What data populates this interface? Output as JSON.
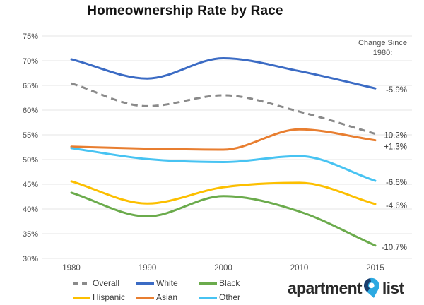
{
  "title": "Homeownership Rate by Race",
  "chart_data": {
    "type": "line",
    "title": "Homeownership Rate by Race",
    "x_categories": [
      "1980",
      "1990",
      "2000",
      "2010",
      "2015"
    ],
    "y_ticks": [
      "75%",
      "70%",
      "65%",
      "60%",
      "55%",
      "50%",
      "45%",
      "40%",
      "35%",
      "30%"
    ],
    "y_range": [
      30,
      75
    ],
    "grid": "horizontal-only",
    "legend_position": "bottom",
    "change_header": {
      "line1": "Change Since",
      "line2": "1980:"
    },
    "series": [
      {
        "name": "Overall",
        "color": "#8a8a8a",
        "dashed": true,
        "values": [
          65.4,
          60.8,
          63.0,
          59.7,
          55.2
        ],
        "change_label": "-10.2%"
      },
      {
        "name": "White",
        "color": "#3b6bc4",
        "dashed": false,
        "values": [
          70.3,
          66.4,
          70.5,
          67.9,
          64.4
        ],
        "change_label": "-5.9%"
      },
      {
        "name": "Black",
        "color": "#6bab4c",
        "dashed": false,
        "values": [
          43.3,
          38.5,
          42.6,
          39.5,
          32.6
        ],
        "change_label": "-10.7%"
      },
      {
        "name": "Hispanic",
        "color": "#fcbf00",
        "dashed": false,
        "values": [
          45.6,
          41.1,
          44.4,
          45.3,
          41.0
        ],
        "change_label": "-4.6%"
      },
      {
        "name": "Asian",
        "color": "#e87e30",
        "dashed": false,
        "values": [
          52.6,
          52.2,
          52.0,
          56.1,
          53.9
        ],
        "change_label": "+1.3%"
      },
      {
        "name": "Other",
        "color": "#47c3f2",
        "dashed": false,
        "values": [
          52.3,
          50.1,
          49.5,
          50.7,
          45.7
        ],
        "change_label": "-6.6%"
      }
    ],
    "legend_rows": [
      [
        "Overall",
        "White",
        "Black"
      ],
      [
        "Hispanic",
        "Asian",
        "Other"
      ]
    ]
  },
  "logo": {
    "word1": "apartment",
    "word2": "list",
    "pin_color_light": "#2ca9e1",
    "pin_color_dark": "#1a3e6e"
  }
}
